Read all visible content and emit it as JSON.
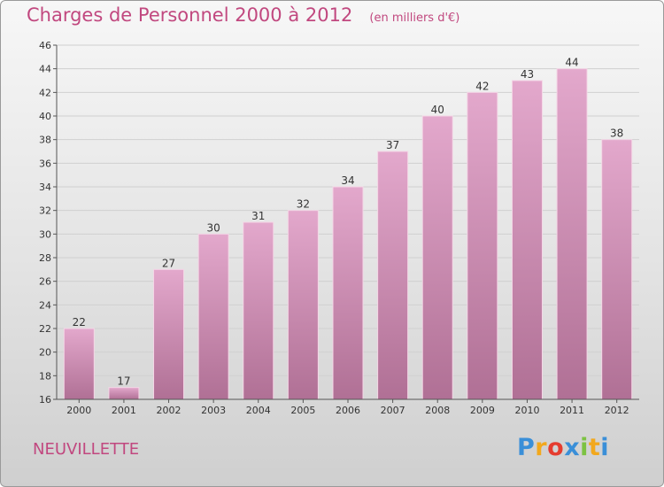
{
  "title": "Charges de Personnel 2000 à 2012",
  "subtitle": "(en milliers d'€)",
  "commune": "NEUVILLETTE",
  "logo": {
    "text": "Proxiti",
    "letters": [
      {
        "char": "P",
        "color": "#3a8fd8"
      },
      {
        "char": "r",
        "color": "#f2a81d"
      },
      {
        "char": "o",
        "color": "#e53c2f"
      },
      {
        "char": "x",
        "color": "#3a8fd8"
      },
      {
        "char": "i",
        "color": "#7cc242"
      },
      {
        "char": "t",
        "color": "#f2a81d"
      },
      {
        "char": "i",
        "color": "#3a8fd8"
      }
    ]
  },
  "colors": {
    "bar_top": "#e3a8cc",
    "bar_bottom": "#b07095",
    "accent": "#c1487f"
  },
  "chart_data": {
    "type": "bar",
    "title": "Charges de Personnel 2000 à 2012",
    "subtitle": "(en milliers d'€)",
    "categories": [
      "2000",
      "2001",
      "2002",
      "2003",
      "2004",
      "2005",
      "2006",
      "2007",
      "2008",
      "2009",
      "2010",
      "2011",
      "2012"
    ],
    "values": [
      22,
      17,
      27,
      30,
      31,
      32,
      34,
      37,
      40,
      42,
      43,
      44,
      38
    ],
    "ylim": [
      16,
      46
    ],
    "yticks": [
      16,
      18,
      20,
      22,
      24,
      26,
      28,
      30,
      32,
      34,
      36,
      38,
      40,
      42,
      44,
      46
    ],
    "grid": "horizontal",
    "data_labels": true
  }
}
